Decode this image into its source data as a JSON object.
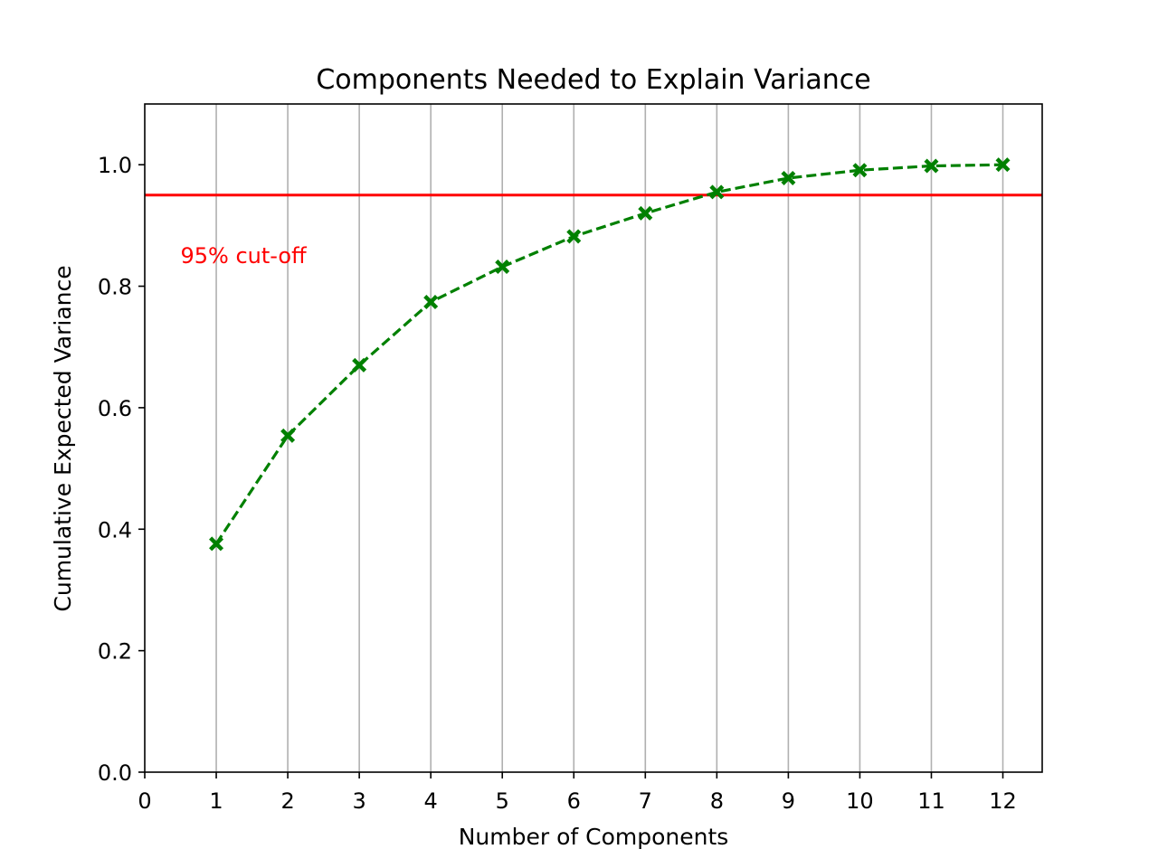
{
  "chart_data": {
    "type": "line",
    "title": "Components Needed to Explain Variance",
    "xlabel": "Number of Components",
    "ylabel": "Cumulative Expected Variance",
    "xlim": [
      0,
      12.55
    ],
    "ylim": [
      0,
      1.1
    ],
    "xticks": [
      "0",
      "1",
      "2",
      "3",
      "4",
      "5",
      "6",
      "7",
      "8",
      "9",
      "10",
      "11",
      "12"
    ],
    "yticks": [
      "0.0",
      "0.2",
      "0.4",
      "0.6",
      "0.8",
      "1.0"
    ],
    "grid": "vertical",
    "series": [
      {
        "x": [
          1,
          2,
          3,
          4,
          5,
          6,
          7,
          8,
          9,
          10,
          11,
          12
        ],
        "values": [
          0.376,
          0.554,
          0.67,
          0.774,
          0.832,
          0.882,
          0.92,
          0.955,
          0.978,
          0.991,
          0.998,
          1.0
        ],
        "color": "#008000",
        "line_style": "dashed",
        "marker": "X"
      }
    ],
    "reference_line": {
      "y": 0.95,
      "color": "#ff0000"
    },
    "annotation": {
      "text": "95% cut-off",
      "x": 0.5,
      "y": 0.85,
      "color": "#ff0000"
    }
  }
}
